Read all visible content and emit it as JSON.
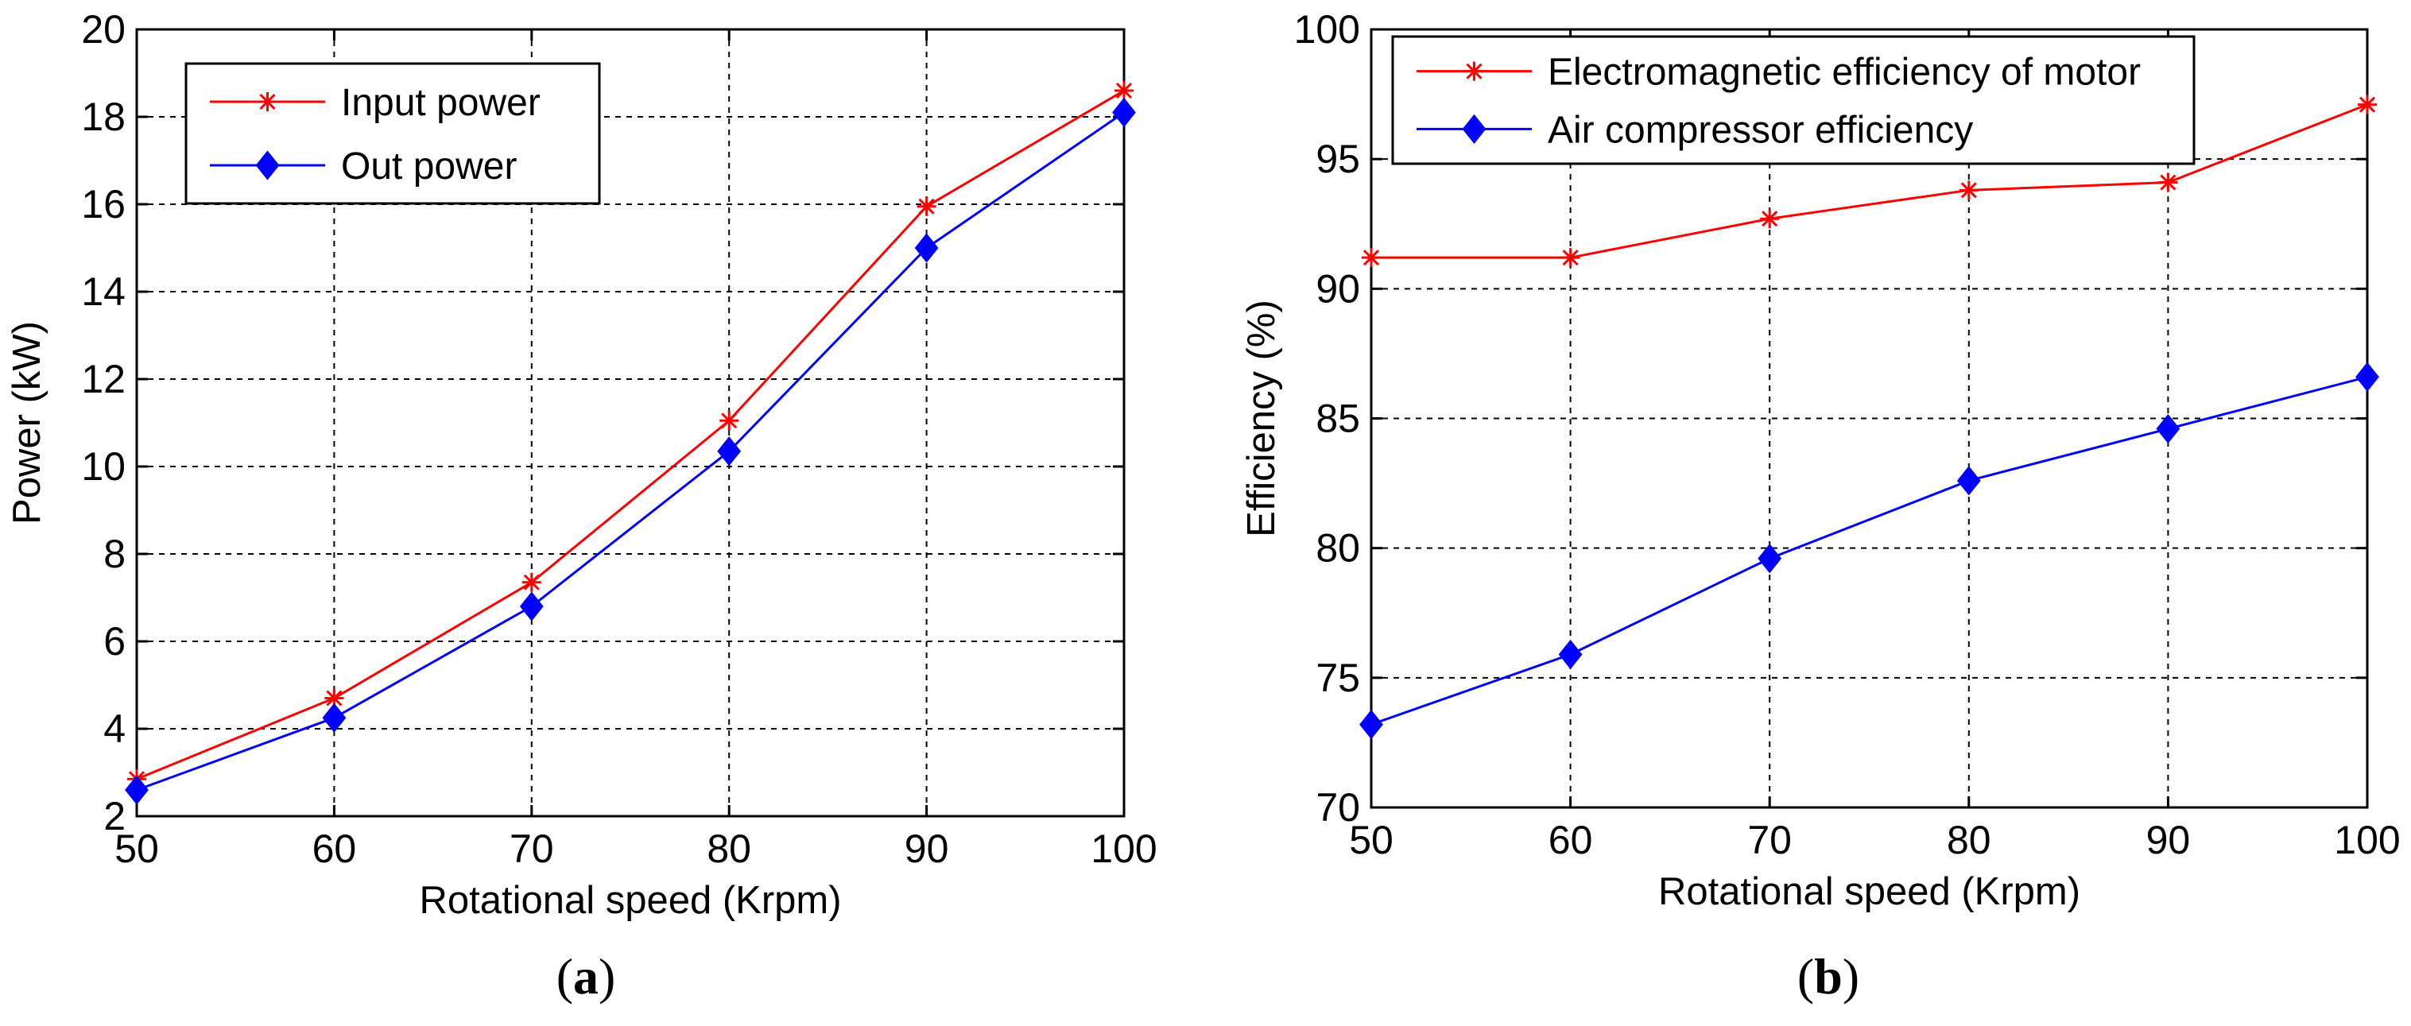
{
  "chart_data": [
    {
      "type": "line",
      "caption": {
        "open": "(",
        "letter": "a",
        "close": ")"
      },
      "title": "",
      "xlabel": "Rotational speed (Krpm)",
      "ylabel": "Power (kW)",
      "xlim": [
        50,
        100
      ],
      "ylim": [
        2,
        20
      ],
      "xticks": [
        50,
        60,
        70,
        80,
        90,
        100
      ],
      "yticks": [
        2,
        4,
        6,
        8,
        10,
        12,
        14,
        16,
        18,
        20
      ],
      "grid": true,
      "legend_position": "top-left",
      "x": [
        50,
        60,
        70,
        80,
        90,
        100
      ],
      "series": [
        {
          "name": "Input power",
          "marker": "star",
          "color": "#ff0000",
          "values": [
            2.85,
            4.7,
            7.35,
            11.05,
            15.95,
            18.6
          ]
        },
        {
          "name": "Out power",
          "marker": "diamond",
          "color": "#0000ff",
          "values": [
            2.6,
            4.25,
            6.8,
            10.35,
            15.0,
            18.1
          ]
        }
      ]
    },
    {
      "type": "line",
      "caption": {
        "open": "(",
        "letter": "b",
        "close": ")"
      },
      "title": "",
      "xlabel": "Rotational speed (Krpm)",
      "ylabel": "Efficiency (%)",
      "xlim": [
        50,
        100
      ],
      "ylim": [
        70,
        100
      ],
      "xticks": [
        50,
        60,
        70,
        80,
        90,
        100
      ],
      "yticks": [
        70,
        75,
        80,
        85,
        90,
        95,
        100
      ],
      "grid": true,
      "legend_position": "top-left",
      "x": [
        50,
        60,
        70,
        80,
        90,
        100
      ],
      "series": [
        {
          "name": "Electromagnetic efficiency of motor",
          "marker": "star",
          "color": "#ff0000",
          "values": [
            91.2,
            91.2,
            92.7,
            93.8,
            94.1,
            97.1
          ]
        },
        {
          "name": "Air compressor efficiency",
          "marker": "diamond",
          "color": "#0000ff",
          "values": [
            73.2,
            75.9,
            79.6,
            82.6,
            84.6,
            86.6
          ]
        }
      ]
    }
  ]
}
